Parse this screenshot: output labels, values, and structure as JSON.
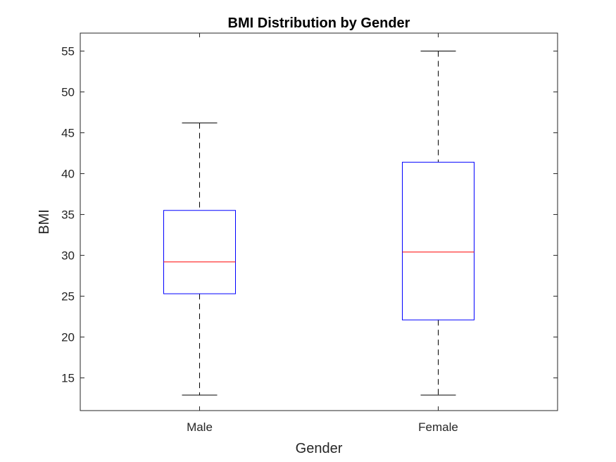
{
  "chart_data": {
    "type": "boxplot",
    "title": "BMI Distribution by Gender",
    "xlabel": "Gender",
    "ylabel": "BMI",
    "categories": [
      "Male",
      "Female"
    ],
    "ylim": [
      11,
      57.2
    ],
    "yticks": [
      15,
      20,
      25,
      30,
      35,
      40,
      45,
      50,
      55
    ],
    "grid": false,
    "colors": {
      "box": "#0000ff",
      "median": "#ff0000",
      "whisker": "#000000",
      "axes": "#262626"
    },
    "boxes": [
      {
        "category": "Male",
        "whisker_low": 12.9,
        "q1": 25.3,
        "median": 29.2,
        "q3": 35.5,
        "whisker_high": 46.2
      },
      {
        "category": "Female",
        "whisker_low": 12.9,
        "q1": 22.1,
        "median": 30.4,
        "q3": 41.4,
        "whisker_high": 55.0
      }
    ]
  }
}
